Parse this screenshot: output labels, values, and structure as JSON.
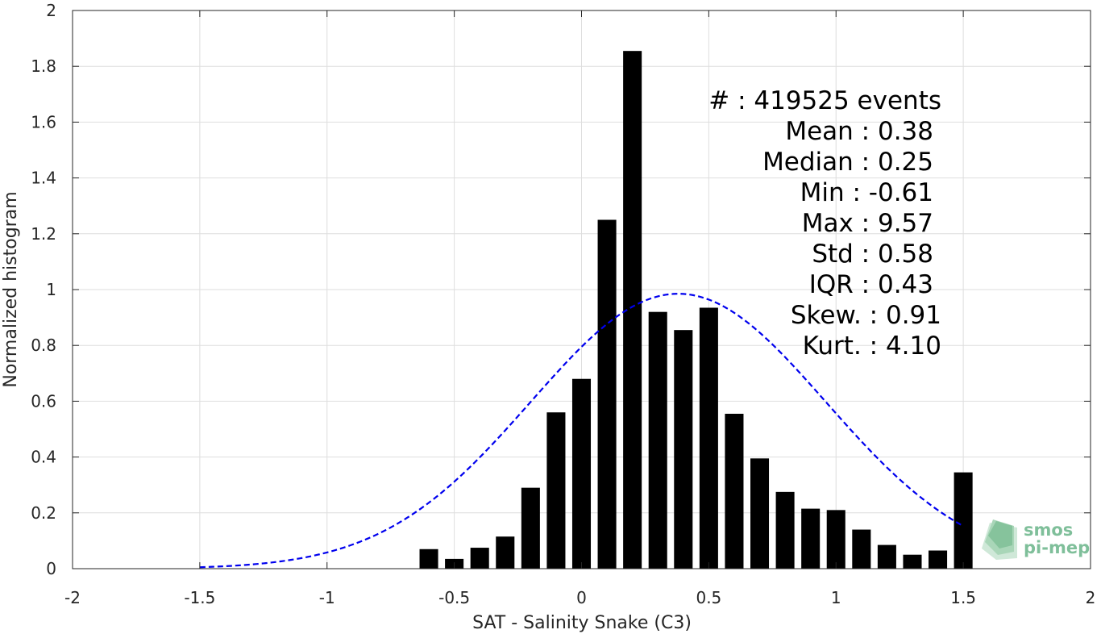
{
  "chart_data": {
    "type": "bar",
    "xlabel": "SAT - Salinity Snake (C3)",
    "ylabel": "Normalized histogram",
    "xlim": [
      -2,
      2
    ],
    "ylim": [
      0,
      2
    ],
    "xticks": [
      -2,
      -1.5,
      -1,
      -0.5,
      0,
      0.5,
      1,
      1.5,
      2
    ],
    "xtick_labels": [
      "-2",
      "-1.5",
      "-1",
      "-0.5",
      "0",
      "0.5",
      "1",
      "1.5",
      "2"
    ],
    "yticks": [
      0,
      0.2,
      0.4,
      0.6,
      0.8,
      1,
      1.2,
      1.4,
      1.6,
      1.8,
      2
    ],
    "ytick_labels": [
      "0",
      "0.2",
      "0.4",
      "0.6",
      "0.8",
      "1",
      "1.2",
      "1.4",
      "1.6",
      "1.8",
      "2"
    ],
    "grid": true,
    "bar_color": "#000000",
    "bars": {
      "x": [
        -0.6,
        -0.5,
        -0.4,
        -0.3,
        -0.2,
        -0.1,
        0.0,
        0.1,
        0.2,
        0.3,
        0.4,
        0.5,
        0.6,
        0.7,
        0.8,
        0.9,
        1.0,
        1.1,
        1.2,
        1.3,
        1.4,
        1.5
      ],
      "values": [
        0.07,
        0.035,
        0.075,
        0.115,
        0.29,
        0.56,
        0.68,
        1.25,
        1.855,
        0.92,
        0.855,
        0.935,
        0.555,
        0.395,
        0.275,
        0.215,
        0.21,
        0.14,
        0.085,
        0.05,
        0.065,
        0.345
      ]
    },
    "fit_curve": {
      "type": "normal",
      "mean": 0.38,
      "std": 0.58,
      "x_range": [
        -1.5,
        1.5
      ],
      "peak": 0.985,
      "color": "#0000ee",
      "style": "dashed"
    },
    "annotations": [
      "#  : 419525 events",
      "Mean : 0.38",
      "Median : 0.25",
      "Min : -0.61",
      "Max : 9.57",
      "Std : 0.58",
      "IQR : 0.43",
      "Skew. : 0.91",
      "Kurt. : 4.10"
    ],
    "logo": {
      "line1": "smos",
      "line2": "pi-mep",
      "color": "#7fbf9a"
    }
  }
}
